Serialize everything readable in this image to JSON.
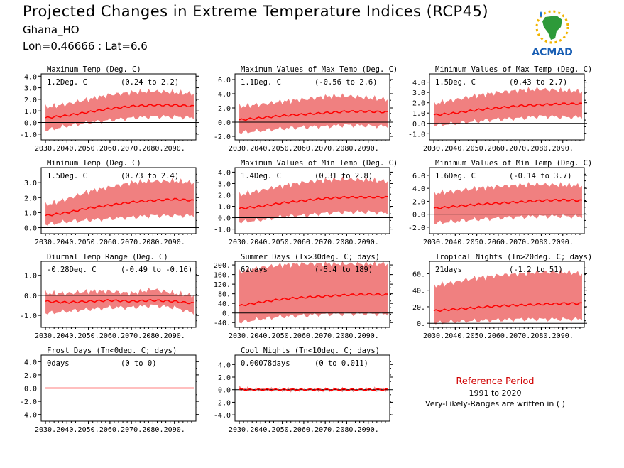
{
  "header": {
    "title": "Projected Changes in Extreme Temperature Indices (RCP45)",
    "station": "Ghana_HO",
    "coords": "Lon=0.46666 : Lat=6.6",
    "logo_text": "ACMAD"
  },
  "reference": {
    "title": "Reference Period",
    "period": "1991 to 2020",
    "note": "Very-Likely-Ranges are written in ( )"
  },
  "colors": {
    "band": "#f08080",
    "line": "#ff0000",
    "zero": "#000000"
  },
  "x_ticks": [
    "2030.",
    "2040.",
    "2050.",
    "2060.",
    "2070.",
    "2080.",
    "2090."
  ],
  "chart_data": [
    {
      "type": "area",
      "title": "Maximum Temp (Deg. C)",
      "summary": "1.2Deg. C",
      "range": "(0.24 to 2.2)",
      "xlim": [
        2028,
        2100
      ],
      "ylim": [
        -1.5,
        4.2
      ],
      "yticks": [
        "4.0",
        "3.0",
        "2.0",
        "1.0",
        "0.0",
        "-1.0"
      ],
      "x": [
        2030,
        2040,
        2050,
        2060,
        2070,
        2080,
        2090,
        2099
      ],
      "series": [
        {
          "values": [
            0.4,
            0.6,
            0.9,
            1.2,
            1.4,
            1.5,
            1.5,
            1.4
          ]
        }
      ],
      "upper": [
        1.3,
        1.6,
        2.0,
        2.4,
        2.6,
        2.7,
        2.6,
        2.5
      ],
      "lower": [
        -0.7,
        -0.3,
        0.0,
        0.2,
        0.4,
        0.5,
        0.5,
        0.4
      ]
    },
    {
      "type": "area",
      "title": "Maximum Values of Max Temp (Deg. C)",
      "summary": "1.1Deg. C",
      "range": "(-0.56 to 2.6)",
      "xlim": [
        2028,
        2100
      ],
      "ylim": [
        -2.5,
        6.8
      ],
      "yticks": [
        "6.0",
        "4.0",
        "2.0",
        "0.0",
        "-2.0"
      ],
      "x": [
        2030,
        2040,
        2050,
        2060,
        2070,
        2080,
        2090,
        2099
      ],
      "series": [
        {
          "values": [
            0.3,
            0.6,
            0.9,
            1.1,
            1.3,
            1.5,
            1.5,
            1.4
          ]
        }
      ],
      "upper": [
        2.2,
        2.5,
        2.9,
        3.2,
        3.6,
        3.7,
        3.4,
        3.2
      ],
      "lower": [
        -1.5,
        -1.2,
        -0.9,
        -0.7,
        -0.6,
        -0.4,
        -0.5,
        -0.6
      ]
    },
    {
      "type": "area",
      "title": "Minimum Values of Max Temp (Deg. C)",
      "summary": "1.5Deg. C",
      "range": "(0.43 to 2.7)",
      "xlim": [
        2028,
        2100
      ],
      "ylim": [
        -1.6,
        4.8
      ],
      "yticks": [
        "4.0",
        "3.0",
        "2.0",
        "1.0",
        "0.0",
        "-1.0"
      ],
      "x": [
        2030,
        2040,
        2050,
        2060,
        2070,
        2080,
        2090,
        2099
      ],
      "series": [
        {
          "values": [
            0.8,
            1.0,
            1.3,
            1.5,
            1.7,
            1.8,
            1.9,
            1.9
          ]
        }
      ],
      "upper": [
        1.9,
        2.3,
        2.7,
        3.0,
        3.2,
        3.3,
        3.2,
        3.1
      ],
      "lower": [
        -0.2,
        0.0,
        0.2,
        0.4,
        0.5,
        0.7,
        0.6,
        0.6
      ]
    },
    {
      "type": "area",
      "title": "Minimum Temp (Deg. C)",
      "summary": "1.5Deg. C",
      "range": "(0.73 to 2.4)",
      "xlim": [
        2028,
        2100
      ],
      "ylim": [
        -0.4,
        4.0
      ],
      "yticks": [
        "3.0",
        "2.0",
        "1.0",
        "0.0"
      ],
      "x": [
        2030,
        2040,
        2050,
        2060,
        2070,
        2080,
        2090,
        2099
      ],
      "series": [
        {
          "values": [
            0.8,
            1.0,
            1.3,
            1.5,
            1.7,
            1.8,
            1.9,
            1.8
          ]
        }
      ],
      "upper": [
        1.5,
        1.9,
        2.4,
        2.7,
        3.0,
        3.1,
        3.1,
        3.0
      ],
      "lower": [
        0.2,
        0.4,
        0.5,
        0.6,
        0.7,
        0.8,
        0.8,
        0.8
      ]
    },
    {
      "type": "area",
      "title": "Maximum Values of Min Temp (Deg. C)",
      "summary": "1.4Deg. C",
      "range": "(0.31 to 2.8)",
      "xlim": [
        2028,
        2100
      ],
      "ylim": [
        -1.4,
        4.4
      ],
      "yticks": [
        "4.0",
        "3.0",
        "2.0",
        "1.0",
        "0.0",
        "-1.0"
      ],
      "x": [
        2030,
        2040,
        2050,
        2060,
        2070,
        2080,
        2090,
        2099
      ],
      "series": [
        {
          "values": [
            0.8,
            1.0,
            1.3,
            1.5,
            1.7,
            1.8,
            1.8,
            1.8
          ]
        }
      ],
      "upper": [
        2.0,
        2.4,
        2.8,
        3.1,
        3.3,
        3.4,
        3.3,
        3.2
      ],
      "lower": [
        -0.4,
        -0.2,
        0.1,
        0.2,
        0.4,
        0.5,
        0.5,
        0.4
      ]
    },
    {
      "type": "area",
      "title": "Minimum Values of Min Temp (Deg. C)",
      "summary": "1.6Deg. C",
      "range": "(-0.14 to 3.7)",
      "xlim": [
        2028,
        2100
      ],
      "ylim": [
        -3.0,
        7.2
      ],
      "yticks": [
        "6.0",
        "4.0",
        "2.0",
        "0.0",
        "-2.0"
      ],
      "x": [
        2030,
        2040,
        2050,
        2060,
        2070,
        2080,
        2090,
        2099
      ],
      "series": [
        {
          "values": [
            0.9,
            1.2,
            1.5,
            1.7,
            1.9,
            2.1,
            2.2,
            2.1
          ]
        }
      ],
      "upper": [
        3.2,
        3.6,
        4.0,
        4.3,
        4.5,
        4.6,
        4.5,
        4.4
      ],
      "lower": [
        -1.4,
        -1.1,
        -0.8,
        -0.6,
        -0.4,
        -0.3,
        -0.3,
        -0.4
      ]
    },
    {
      "type": "area",
      "title": "Diurnal Temp Range (Deg. C)",
      "summary": "-0.28Deg. C",
      "range": "(-0.49 to -0.16)",
      "xlim": [
        2028,
        2100
      ],
      "ylim": [
        -1.6,
        1.7
      ],
      "yticks": [
        "1.0",
        "0.0",
        "-1.0"
      ],
      "x": [
        2030,
        2040,
        2050,
        2060,
        2070,
        2080,
        2090,
        2099
      ],
      "series": [
        {
          "values": [
            -0.3,
            -0.35,
            -0.3,
            -0.25,
            -0.3,
            -0.25,
            -0.3,
            -0.4
          ]
        }
      ],
      "upper": [
        0.1,
        0.1,
        0.2,
        0.2,
        0.1,
        0.3,
        0.1,
        0.0
      ],
      "lower": [
        -0.9,
        -0.8,
        -0.7,
        -0.6,
        -0.6,
        -0.5,
        -0.6,
        -0.9
      ]
    },
    {
      "type": "area",
      "title": "Summer Days (Tx>30deg. C; days)",
      "summary": "62days",
      "range": "(-5.4 to 189)",
      "xlim": [
        2028,
        2100
      ],
      "ylim": [
        -60,
        215
      ],
      "yticks": [
        "200.",
        "160.",
        "120.",
        "80.",
        "40.",
        "0.",
        "-40."
      ],
      "x": [
        2030,
        2040,
        2050,
        2060,
        2070,
        2080,
        2090,
        2099
      ],
      "series": [
        {
          "values": [
            30,
            45,
            58,
            65,
            70,
            75,
            78,
            76
          ]
        }
      ],
      "upper": [
        170,
        190,
        200,
        205,
        205,
        205,
        205,
        205
      ],
      "lower": [
        -40,
        -25,
        -15,
        -10,
        -5,
        -3,
        -3,
        -5
      ]
    },
    {
      "type": "area",
      "title": "Tropical Nights (Tn>20deg. C; days)",
      "summary": "21days",
      "range": "(-1.2 to 51)",
      "xlim": [
        2028,
        2100
      ],
      "ylim": [
        -5,
        75
      ],
      "yticks": [
        "60.",
        "40.",
        "20.",
        "0."
      ],
      "x": [
        2030,
        2040,
        2050,
        2060,
        2070,
        2080,
        2090,
        2099
      ],
      "series": [
        {
          "values": [
            15,
            17,
            19,
            21,
            22,
            23,
            24,
            24
          ]
        }
      ],
      "upper": [
        45,
        50,
        55,
        58,
        60,
        62,
        62,
        60
      ],
      "lower": [
        0,
        2,
        3,
        4,
        5,
        5,
        5,
        5
      ]
    },
    {
      "type": "area",
      "title": "Frost Days (Tn<0deg. C; days)",
      "summary": "0days",
      "range": "(0 to 0)",
      "xlim": [
        2028,
        2100
      ],
      "ylim": [
        -5,
        5
      ],
      "yticks": [
        "4.0",
        "2.0",
        "0.0",
        "-2.0",
        "-4.0"
      ],
      "x": [
        2030,
        2099
      ],
      "series": [
        {
          "values": [
            0,
            0
          ]
        }
      ],
      "upper": [
        0,
        0
      ],
      "lower": [
        0,
        0
      ]
    },
    {
      "type": "area",
      "title": "Cool Nights (Tn<10deg. C; days)",
      "summary": "0.00078days",
      "range": "(0 to 0.011)",
      "xlim": [
        2028,
        2100
      ],
      "ylim": [
        -5,
        5.5
      ],
      "yticks": [
        "4.0",
        "2.0",
        "0.0",
        "-2.0",
        "-4.0"
      ],
      "x": [
        2030,
        2031,
        2032,
        2099
      ],
      "series": [
        {
          "values": [
            0,
            0.05,
            0,
            0
          ]
        }
      ],
      "upper": [
        0.1,
        0.6,
        0.1,
        0.0
      ],
      "lower": [
        0,
        0,
        0,
        0
      ]
    }
  ]
}
